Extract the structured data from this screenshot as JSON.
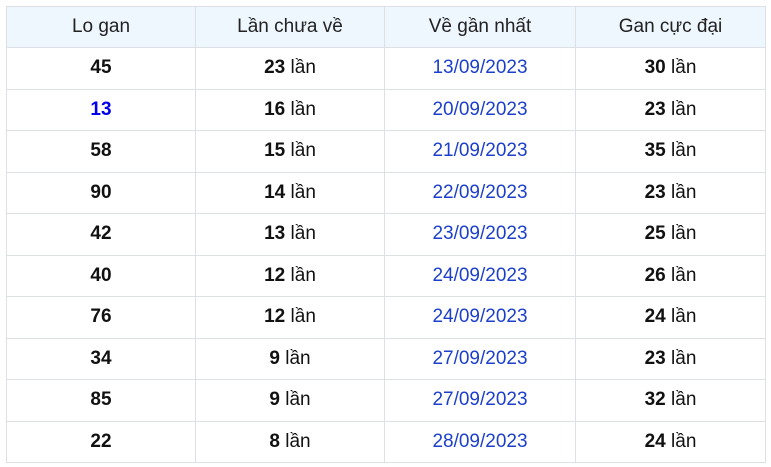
{
  "headers": [
    "Lo gan",
    "Lần chưa về",
    "Về gần nhất",
    "Gan cực đại"
  ],
  "unit": "lần",
  "colors": {
    "header_bg": "#eef6fe",
    "date": "#1c3fcc",
    "highlight": "#0000ee"
  },
  "rows": [
    {
      "number": "45",
      "missed": "23",
      "last": "13/09/2023",
      "max": "30",
      "highlight": false
    },
    {
      "number": "13",
      "missed": "16",
      "last": "20/09/2023",
      "max": "23",
      "highlight": true
    },
    {
      "number": "58",
      "missed": "15",
      "last": "21/09/2023",
      "max": "35",
      "highlight": false
    },
    {
      "number": "90",
      "missed": "14",
      "last": "22/09/2023",
      "max": "23",
      "highlight": false
    },
    {
      "number": "42",
      "missed": "13",
      "last": "23/09/2023",
      "max": "25",
      "highlight": false
    },
    {
      "number": "40",
      "missed": "12",
      "last": "24/09/2023",
      "max": "26",
      "highlight": false
    },
    {
      "number": "76",
      "missed": "12",
      "last": "24/09/2023",
      "max": "24",
      "highlight": false
    },
    {
      "number": "34",
      "missed": "9",
      "last": "27/09/2023",
      "max": "23",
      "highlight": false
    },
    {
      "number": "85",
      "missed": "9",
      "last": "27/09/2023",
      "max": "32",
      "highlight": false
    },
    {
      "number": "22",
      "missed": "8",
      "last": "28/09/2023",
      "max": "24",
      "highlight": false
    }
  ]
}
